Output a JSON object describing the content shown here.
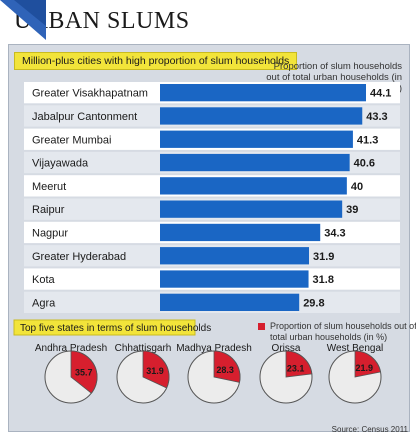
{
  "header": {
    "title": "URBAN SLUMS"
  },
  "colors": {
    "bar": "#1a66c4",
    "pie_highlight": "#d61f2e",
    "pie_rest": "#ececec",
    "tag": "#f2e43a",
    "panel": "#d6dbe3",
    "row_alt": "#e4e8ee"
  },
  "chart_data": [
    {
      "type": "bar",
      "orientation": "horizontal",
      "title": "Million-plus cities with high proportion of slum households",
      "legend_label": "Proportion of slum households out of total urban households (in %)",
      "categories": [
        "Greater Visakhapatnam",
        "Jabalpur Cantonment",
        "Greater Mumbai",
        "Vijayawada",
        "Meerut",
        "Raipur",
        "Nagpur",
        "Greater Hyderabad",
        "Kota",
        "Agra"
      ],
      "values": [
        44.1,
        43.3,
        41.3,
        40.6,
        40,
        39,
        34.3,
        31.9,
        31.8,
        29.8
      ],
      "value_labels": [
        "44.1",
        "43.3",
        "41.3",
        "40.6",
        "40",
        "39",
        "34.3",
        "31.9",
        "31.8",
        "29.8"
      ]
    },
    {
      "type": "pie",
      "title": "Top five states in terms of slum households",
      "legend_label": "Proportion of slum households out of total urban households (in %)",
      "categories": [
        "Andhra Pradesh",
        "Chhattisgarh",
        "Madhya Pradesh",
        "Orissa",
        "West Bengal"
      ],
      "values": [
        35.7,
        31.9,
        28.3,
        23.1,
        21.9
      ],
      "value_labels": [
        "35.7",
        "31.9",
        "28.3",
        "23.1",
        "21.9"
      ]
    }
  ],
  "source": "Source: Census 2011"
}
